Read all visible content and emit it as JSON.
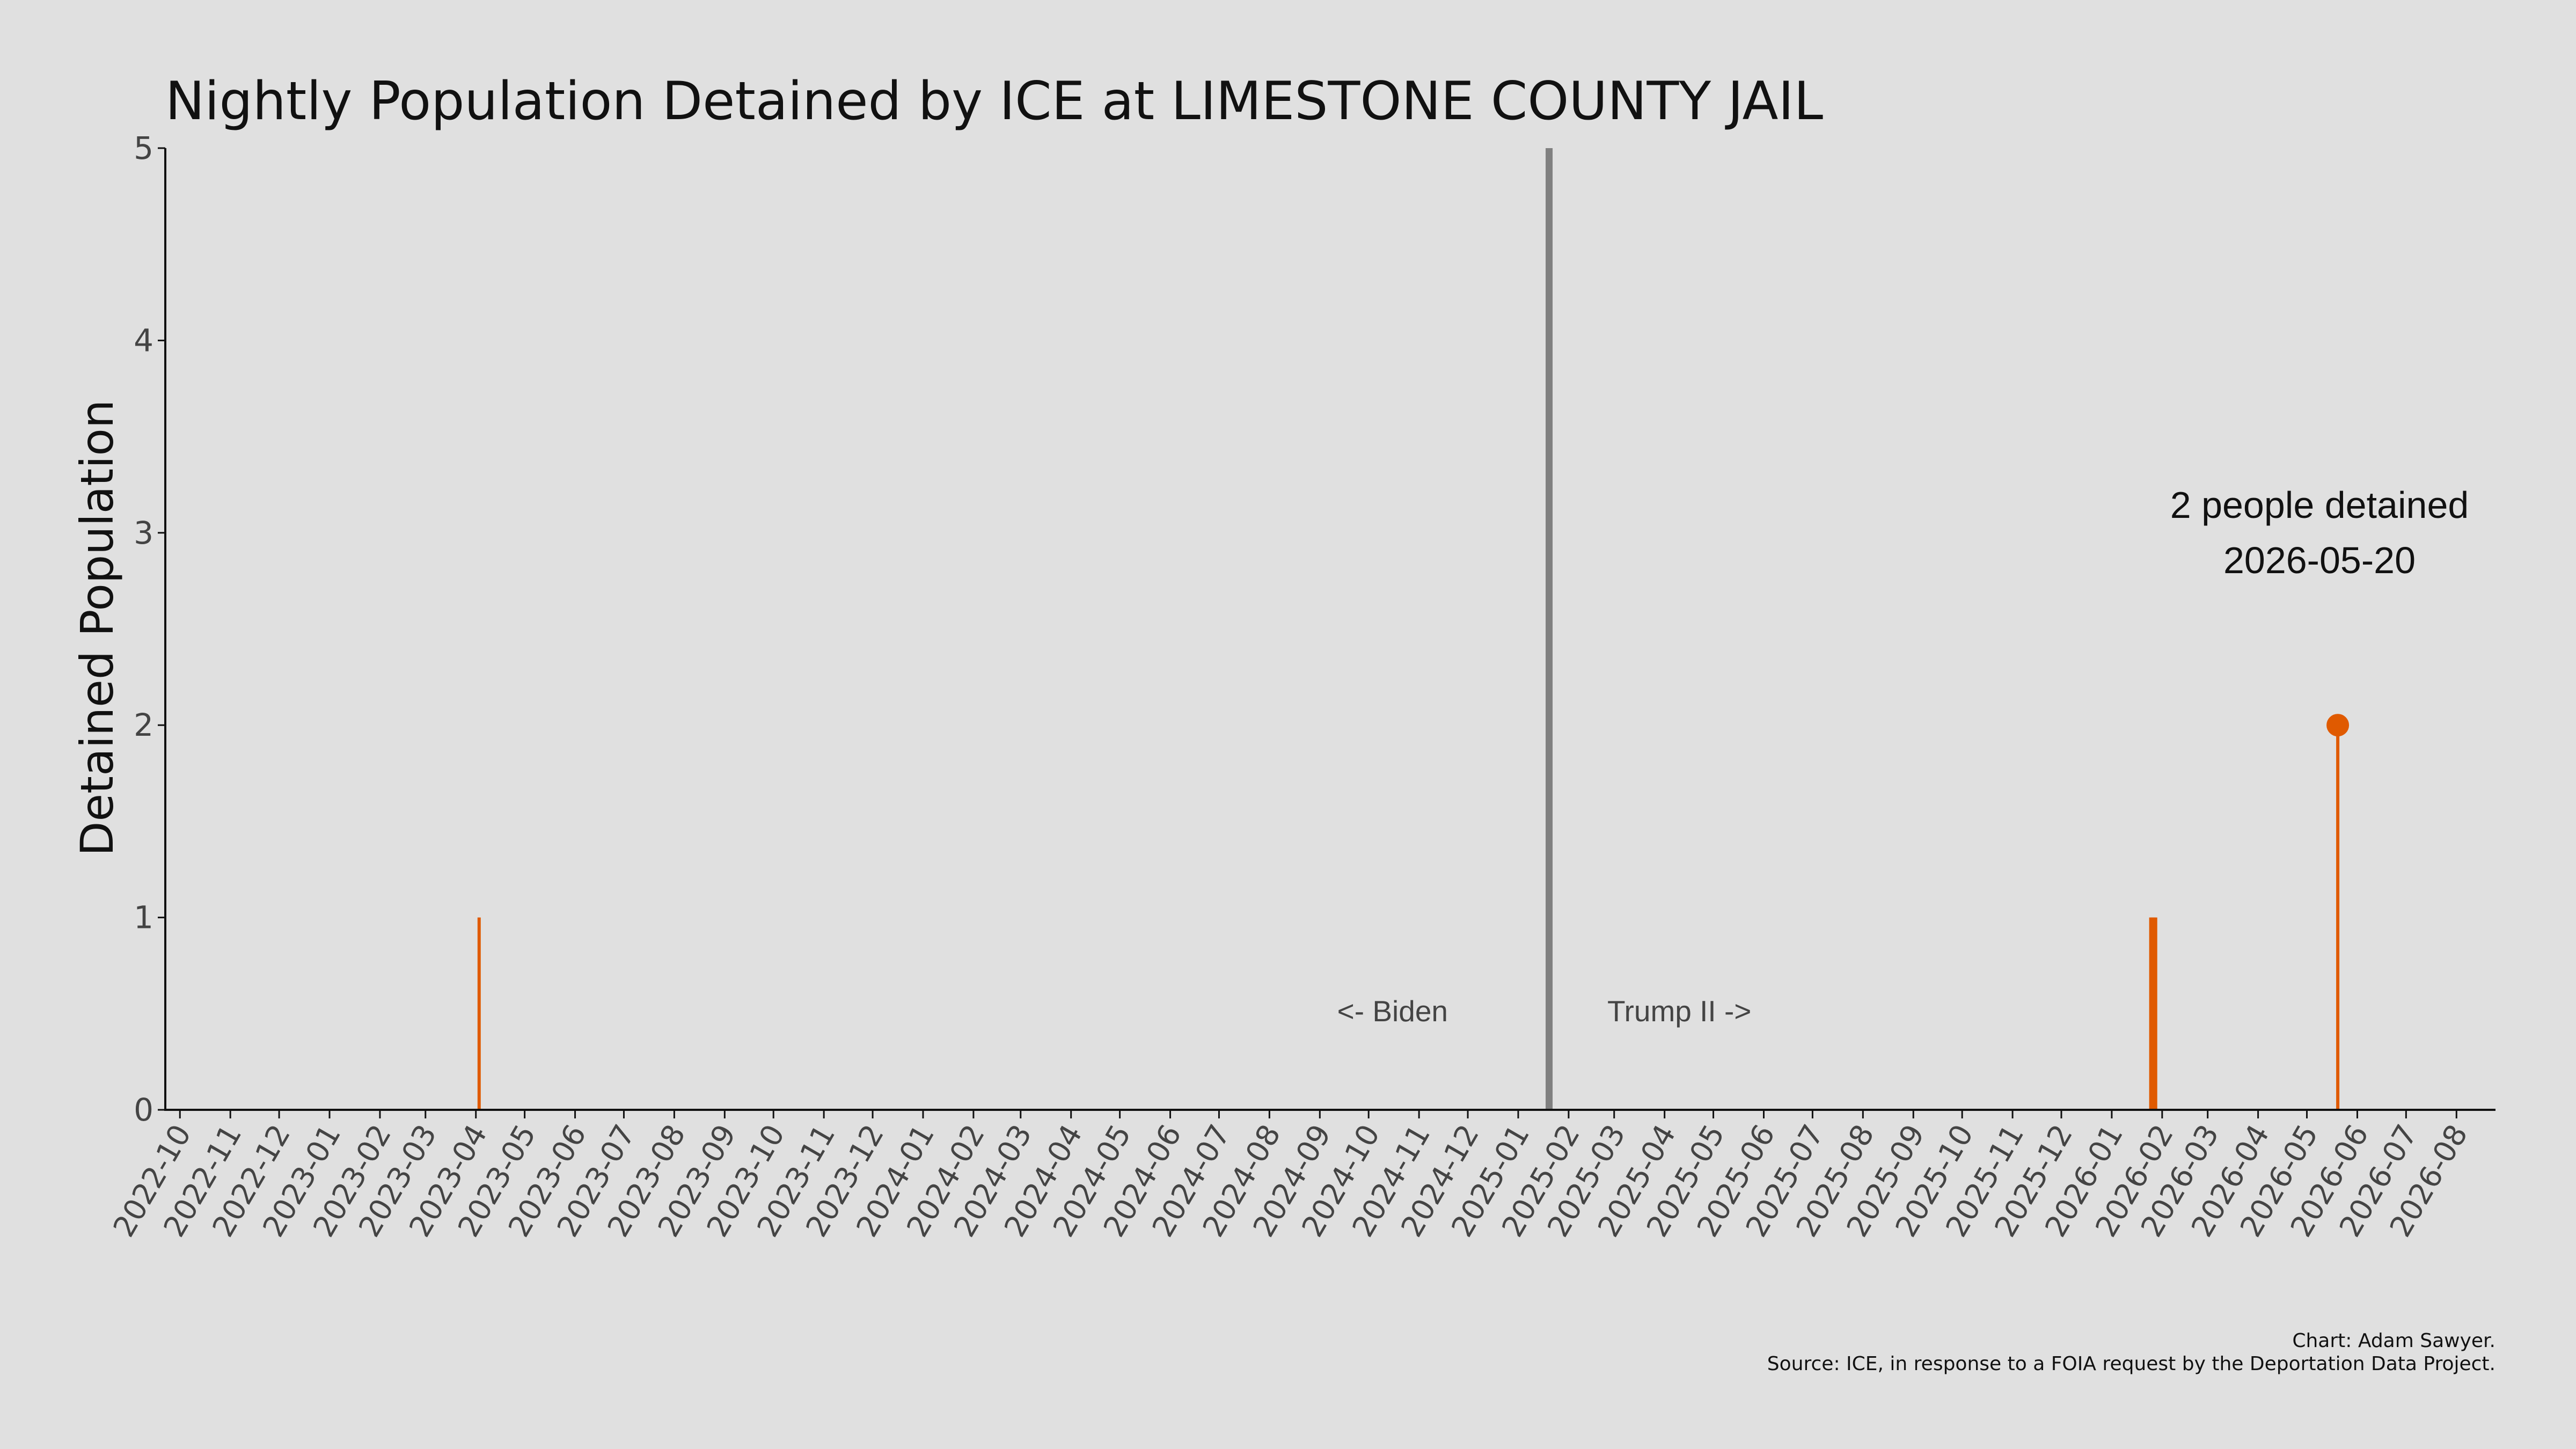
{
  "chart_data": {
    "type": "bar",
    "title": "Nightly Population Detained by ICE at LIMESTONE COUNTY JAIL",
    "xlabel": "",
    "ylabel": "Detained Population",
    "ylim": [
      0,
      5
    ],
    "yticks": [
      0,
      1,
      2,
      3,
      4,
      5
    ],
    "xlim": [
      "2022-09-22",
      "2026-08-25"
    ],
    "xticks": [
      "2022-10",
      "2022-11",
      "2022-12",
      "2023-01",
      "2023-02",
      "2023-03",
      "2023-04",
      "2023-05",
      "2023-06",
      "2023-07",
      "2023-08",
      "2023-09",
      "2023-10",
      "2023-11",
      "2023-12",
      "2024-01",
      "2024-02",
      "2024-03",
      "2024-04",
      "2024-05",
      "2024-06",
      "2024-07",
      "2024-08",
      "2024-09",
      "2024-10",
      "2024-11",
      "2024-12",
      "2025-01",
      "2025-02",
      "2025-03",
      "2025-04",
      "2025-05",
      "2025-06",
      "2025-07",
      "2025-08",
      "2025-09",
      "2025-10",
      "2025-11",
      "2025-12",
      "2026-01",
      "2026-02",
      "2026-03",
      "2026-04",
      "2026-05",
      "2026-06",
      "2026-07",
      "2026-08"
    ],
    "series": [
      {
        "color": "#e05a00",
        "points": [
          {
            "x": "2023-04-03",
            "y": 1
          },
          {
            "x": "2026-01-25",
            "y": 1
          },
          {
            "x": "2026-01-26",
            "y": 1
          },
          {
            "x": "2026-01-27",
            "y": 1
          },
          {
            "x": "2026-01-28",
            "y": 1
          },
          {
            "x": "2026-05-20",
            "y": 2
          }
        ]
      }
    ],
    "vline": {
      "x": "2025-01-20",
      "color": "#808080"
    },
    "era_labels": {
      "left": "<- Biden",
      "right": "Trump II ->"
    },
    "highlight": {
      "x": "2026-05-20",
      "y": 2,
      "line1": "2 people detained",
      "line2": "2026-05-20"
    },
    "credit": {
      "line1": "Chart: Adam Sawyer.",
      "line2": "Source: ICE, in response to a FOIA request by the Deportation Data Project."
    },
    "grid": false,
    "legend": "none"
  }
}
